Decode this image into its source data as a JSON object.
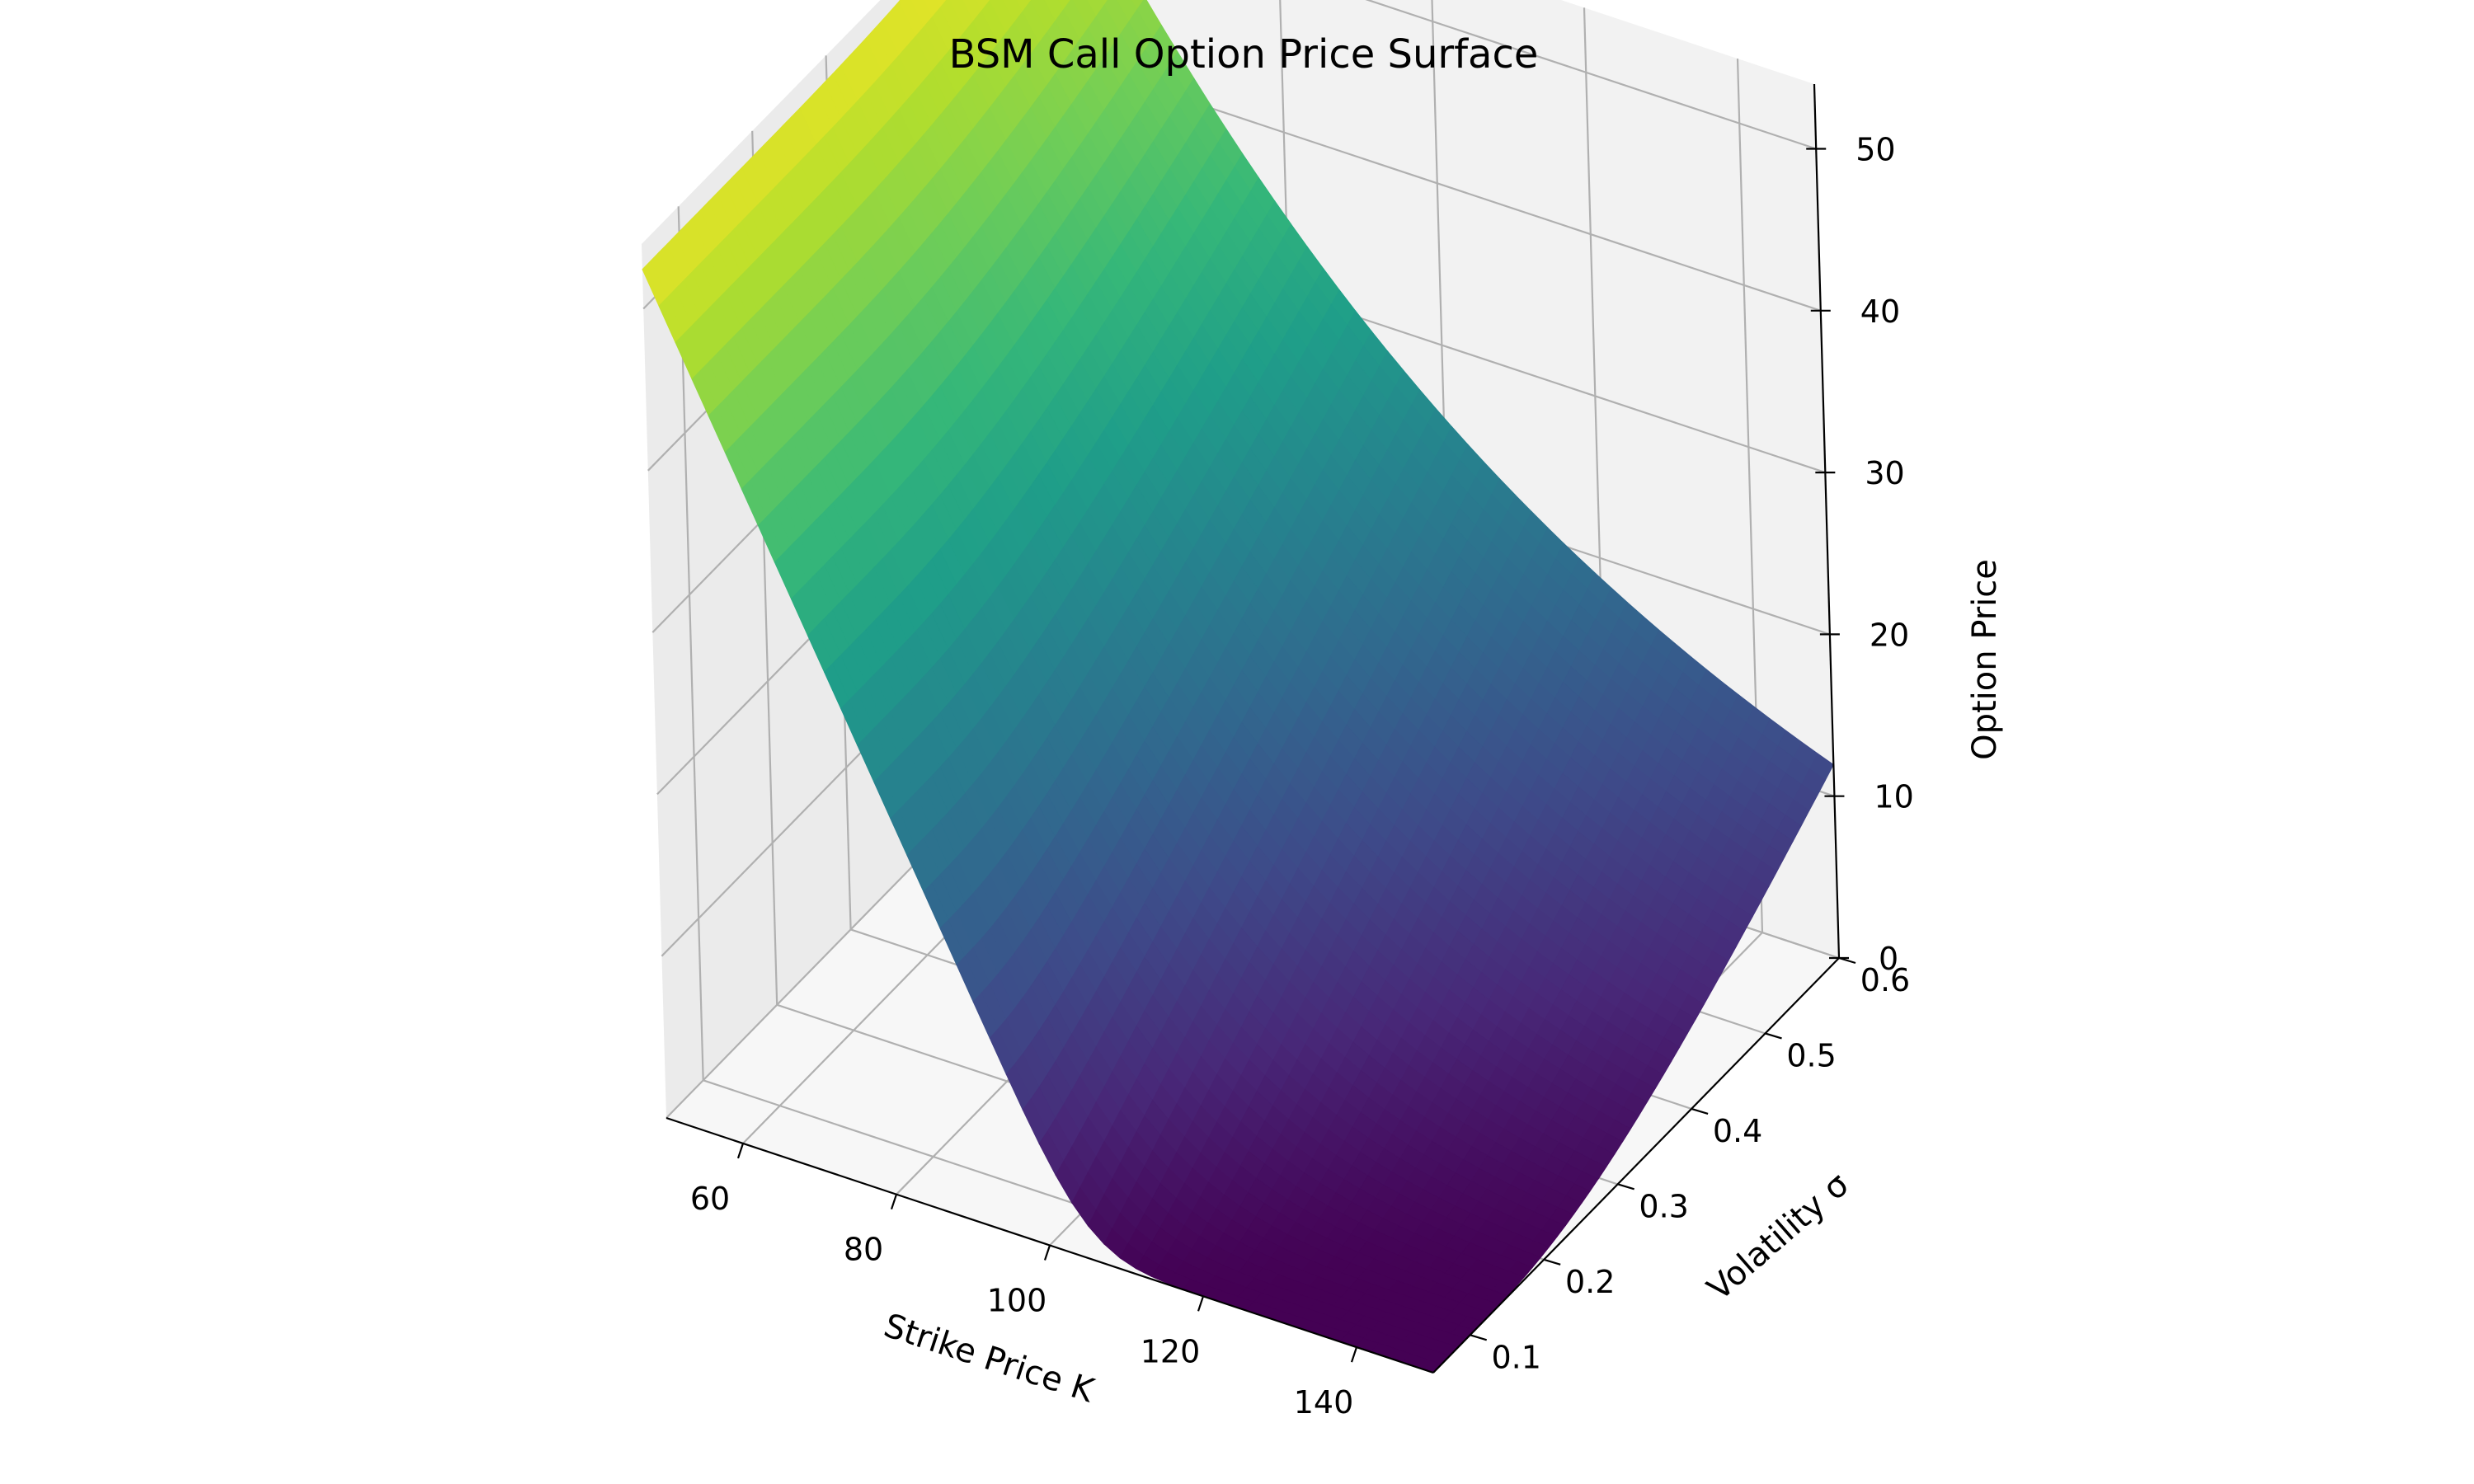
{
  "chart_data": {
    "type": "surface",
    "title": "BSM Call Option Price Surface",
    "xlabel": "Strike Price K",
    "ylabel": "Volatility σ",
    "zlabel": "Option Price",
    "xlim": [
      50,
      150
    ],
    "ylim": [
      0.05,
      0.6
    ],
    "zlim": [
      0,
      54
    ],
    "x_ticks": [
      "60",
      "80",
      "100",
      "120",
      "140"
    ],
    "y_ticks": [
      "0.1",
      "0.2",
      "0.3",
      "0.4",
      "0.5",
      "0.6"
    ],
    "z_ticks": [
      "0",
      "10",
      "20",
      "30",
      "40",
      "50"
    ],
    "colormap": "viridis",
    "grid": true,
    "grid_resolution": {
      "strikes": 50,
      "volatilities": 50
    },
    "corner_values": [
      {
        "strike": 50,
        "volatility": 0.05,
        "price": 50
      },
      {
        "strike": 50,
        "volatility": 0.6,
        "price": 54
      },
      {
        "strike": 150,
        "volatility": 0.05,
        "price": 0
      },
      {
        "strike": 150,
        "volatility": 0.6,
        "price": 14
      }
    ]
  }
}
